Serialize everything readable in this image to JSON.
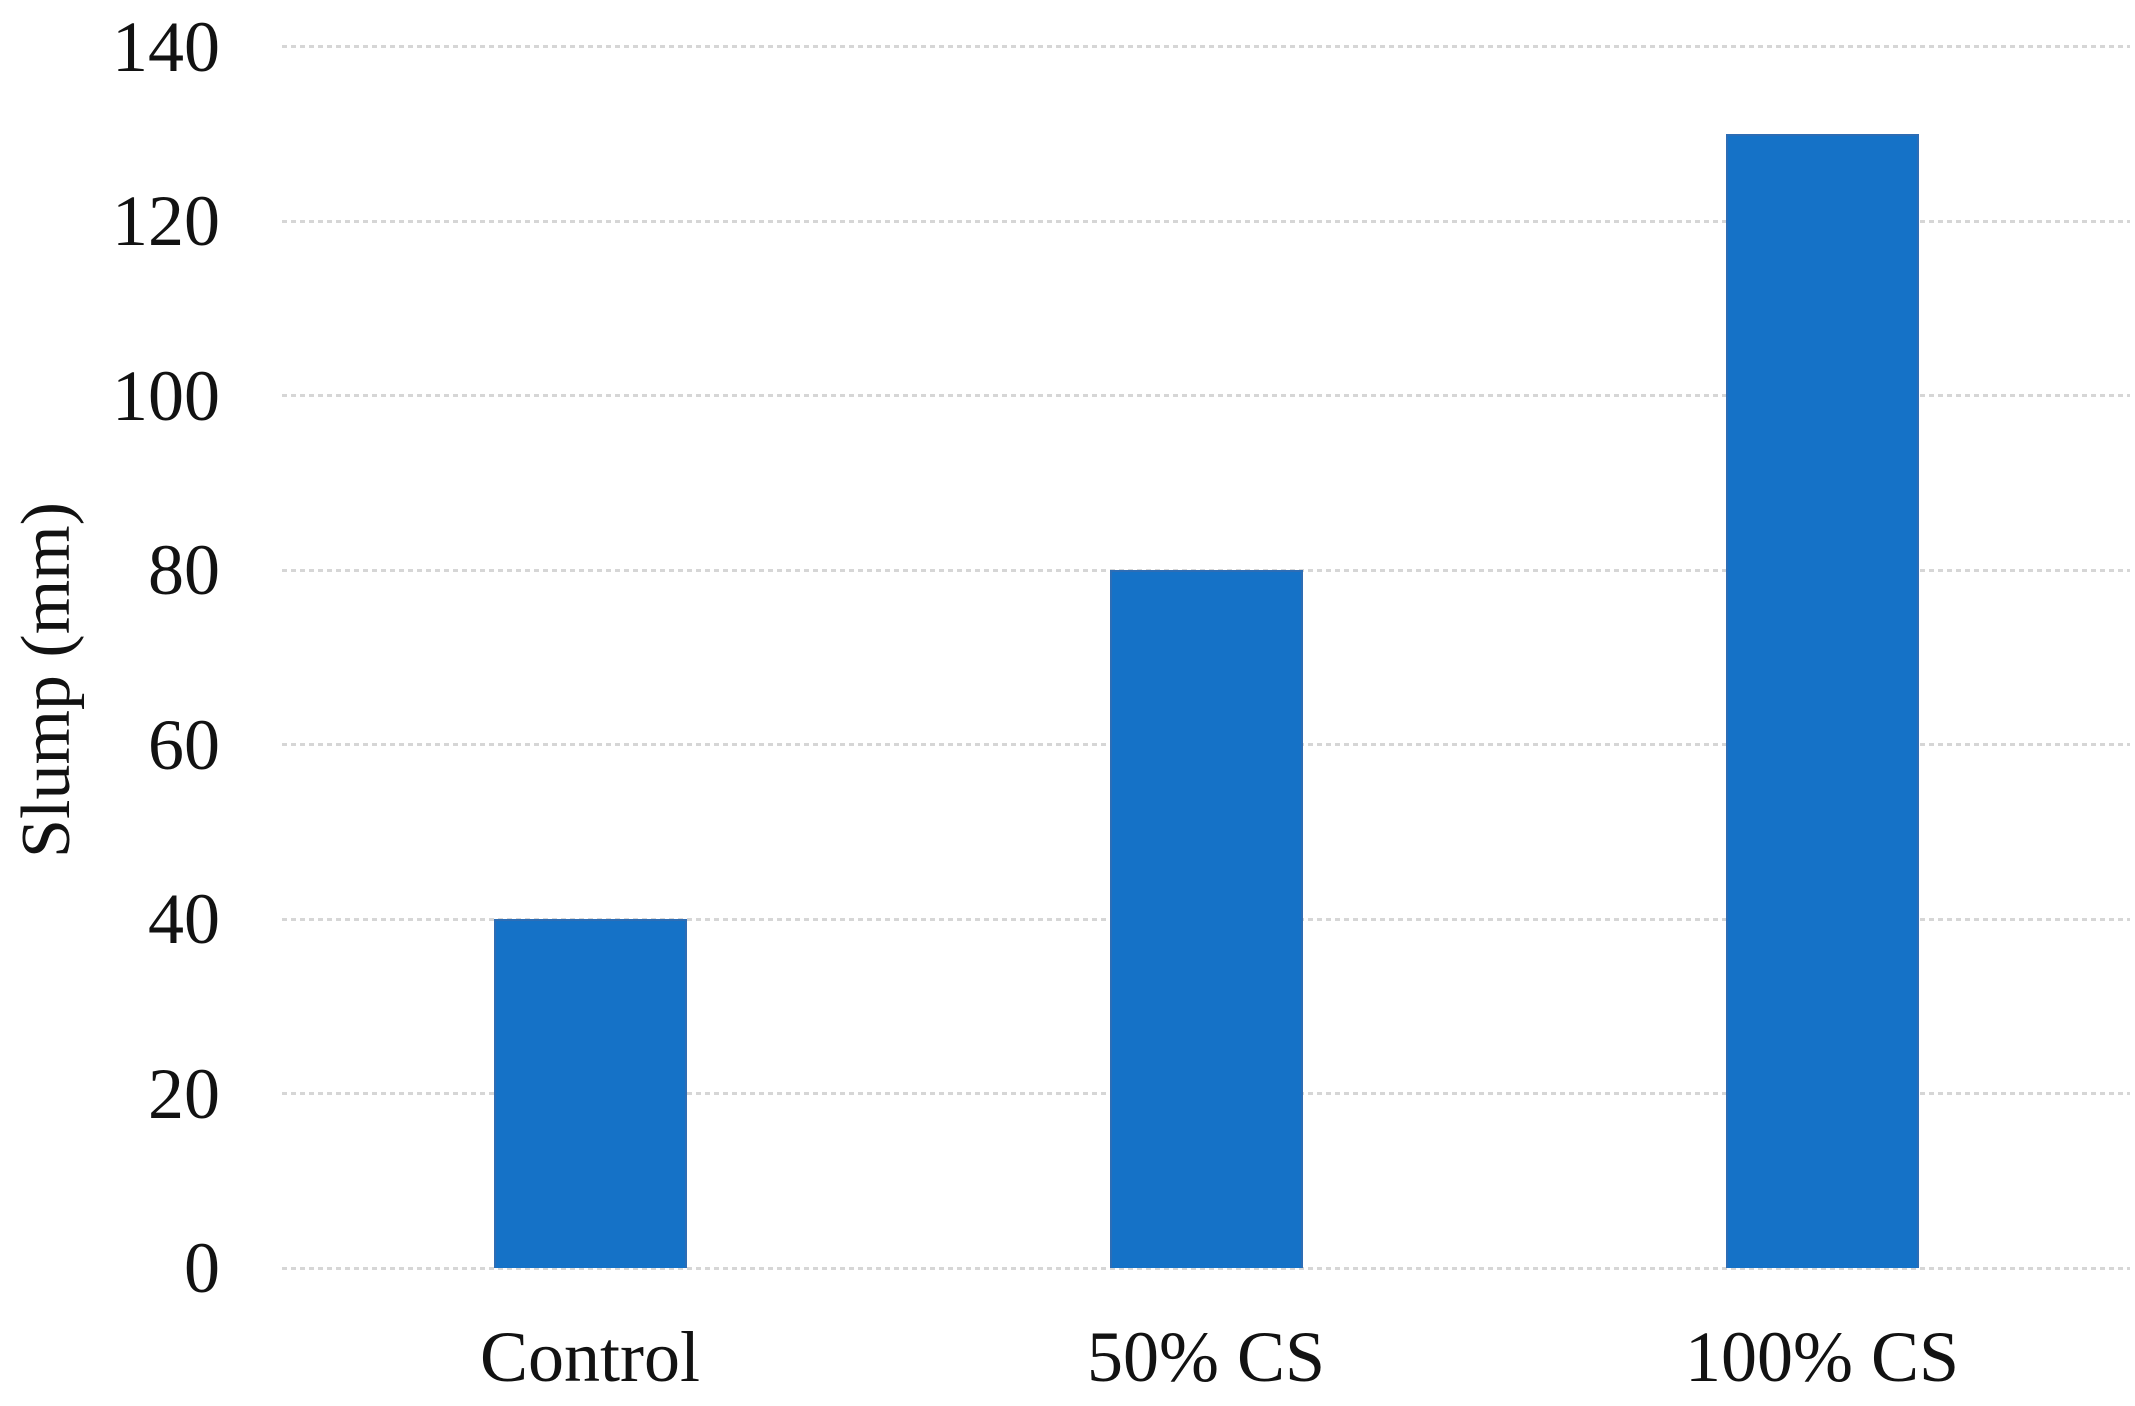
{
  "chart_data": {
    "type": "bar",
    "categories": [
      "Control",
      "50% CS",
      "100% CS"
    ],
    "values": [
      40,
      80,
      130
    ],
    "series": [
      {
        "name": "Slump",
        "values": [
          40,
          80,
          130
        ]
      }
    ],
    "title": "",
    "xlabel": "",
    "ylabel": "Slump (mm)",
    "ylim": [
      0,
      140
    ],
    "yticks": [
      0,
      20,
      40,
      60,
      80,
      100,
      120,
      140
    ],
    "grid": "horizontal-dotted",
    "legend": "none",
    "colors": {
      "bar": "#1572C7",
      "bar_border": "#2D6DB5",
      "gridline": "#D6D6D6",
      "text": "#121212",
      "background": "#FFFFFF"
    }
  }
}
